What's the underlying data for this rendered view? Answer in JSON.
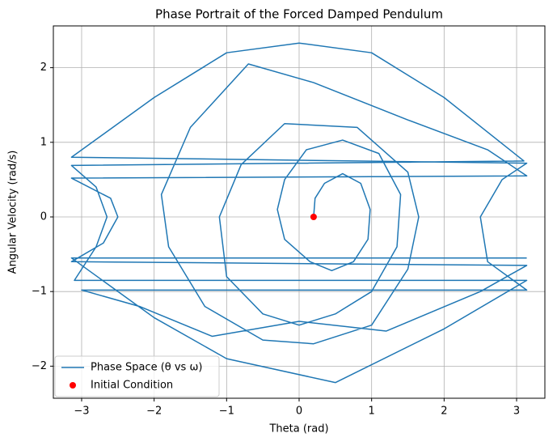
{
  "chart_data": {
    "type": "line",
    "title": "Phase Portrait of the Forced Damped Pendulum",
    "x_label": "Theta (rad)",
    "y_label": "Angular Velocity (rad/s)",
    "xlim": [
      -3.39,
      3.39
    ],
    "ylim": [
      -2.43,
      2.56
    ],
    "xticks": [
      {
        "value": -3,
        "label": "−3"
      },
      {
        "value": -2,
        "label": "−2"
      },
      {
        "value": -1,
        "label": "−1"
      },
      0,
      1,
      2,
      3
    ],
    "yticks": [
      {
        "value": -2,
        "label": "−2"
      },
      {
        "value": -1,
        "label": "−1"
      },
      0,
      1,
      2
    ],
    "grid": true,
    "legend": "lower left",
    "series": [
      {
        "name": "Phase Space (θ vs ω)",
        "color": "#1f77b4",
        "x": [
          0.2,
          0.22,
          0.35,
          0.6,
          0.85,
          0.98,
          0.95,
          0.75,
          0.45,
          0.15,
          -0.2,
          -0.3,
          -0.2,
          0.1,
          0.6,
          1.1,
          1.4,
          1.35,
          1.0,
          0.5,
          0.0,
          -0.5,
          -1.0,
          -1.1,
          -0.8,
          -0.2,
          0.8,
          1.5,
          1.65,
          1.5,
          1.0,
          0.2,
          -0.5,
          -1.3,
          -1.8,
          -1.9,
          -1.5,
          -0.7,
          0.2,
          1.5,
          2.6,
          3.14,
          -3.14,
          -2.6,
          -2.5,
          -2.7,
          -3.14,
          3.14,
          2.5,
          1.2,
          0.0,
          -1.2,
          -2.2,
          -3.0,
          3.14,
          2.6,
          2.5,
          2.8,
          3.14,
          -3.14,
          -2.0,
          -1.0,
          0.0,
          1.0,
          2.0,
          3.1,
          -3.14,
          -2.8,
          -2.65,
          -2.8,
          -3.1,
          3.14,
          2.0,
          0.5,
          -1.0,
          -2.0,
          -3.14,
          3.14
        ],
        "values": [
          0,
          0.25,
          0.45,
          0.58,
          0.45,
          0.1,
          -0.3,
          -0.6,
          -0.72,
          -0.6,
          -0.3,
          0.1,
          0.5,
          0.9,
          1.03,
          0.85,
          0.3,
          -0.4,
          -1.0,
          -1.3,
          -1.45,
          -1.3,
          -0.8,
          0.0,
          0.7,
          1.25,
          1.2,
          0.6,
          0,
          -0.7,
          -1.45,
          -1.7,
          -1.65,
          -1.2,
          -0.4,
          0.3,
          1.2,
          2.05,
          1.8,
          1.3,
          0.9,
          0.55,
          0.52,
          0.25,
          0,
          -0.35,
          -0.6,
          -0.65,
          -1.0,
          -1.53,
          -1.4,
          -1.6,
          -1.2,
          -0.98,
          -0.98,
          -0.6,
          0,
          0.5,
          0.72,
          0.8,
          1.6,
          2.2,
          2.33,
          2.2,
          1.6,
          0.75,
          0.69,
          0.4,
          0,
          -0.4,
          -0.85,
          -0.85,
          -1.5,
          -2.22,
          -1.9,
          -1.35,
          -0.55,
          -0.55
        ]
      }
    ],
    "markers": [
      {
        "name": "Initial Condition",
        "color": "#ff0000",
        "x": [
          0.2
        ],
        "values": [
          0
        ]
      }
    ]
  }
}
